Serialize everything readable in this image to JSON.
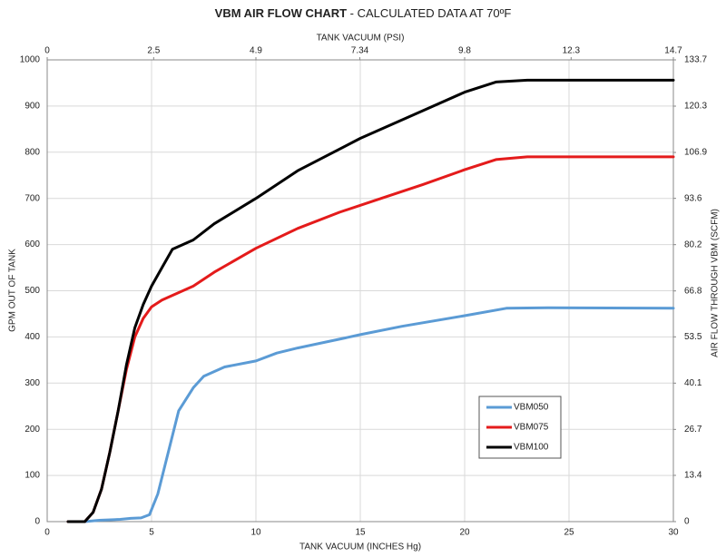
{
  "chart_data": {
    "type": "line",
    "title": "VBM AIR FLOW CHART",
    "subtitle": "- CALCULATED DATA AT 70ºF",
    "x_label": "TANK VACUUM (INCHES Hg)",
    "x2_label": "TANK VACUUM (PSI)",
    "y_label": "GPM OUT OF TANK",
    "y2_label": "AIR FLOW THROUGH VBM (SCFM)",
    "xlim": [
      0,
      30
    ],
    "xticks": [
      0,
      5,
      10,
      15,
      20,
      25,
      30
    ],
    "x2lim": [
      0,
      14.7
    ],
    "x2ticks": [
      0,
      2.5,
      4.9,
      7.34,
      9.8,
      12.3,
      14.7
    ],
    "ylim": [
      0,
      1000
    ],
    "yticks": [
      0,
      100,
      200,
      300,
      400,
      500,
      600,
      700,
      800,
      900,
      1000
    ],
    "y2lim": [
      0,
      133.7
    ],
    "y2ticks": [
      0,
      13.4,
      26.7,
      40.1,
      53.5,
      66.8,
      80.2,
      93.6,
      106.9,
      120.3,
      133.7
    ],
    "grid": true,
    "legend": "lower right",
    "series": [
      {
        "name": "VBM050",
        "color": "#5b9bd5",
        "x": [
          1,
          1.8,
          2.5,
          3.5,
          4,
          4.5,
          4.9,
          5.3,
          5.8,
          6.3,
          7,
          7.5,
          8.5,
          10,
          11,
          12,
          14,
          15,
          17,
          20,
          22,
          24,
          30
        ],
        "values": [
          0,
          0,
          3,
          5,
          7,
          8,
          15,
          60,
          150,
          240,
          290,
          315,
          335,
          348,
          365,
          376,
          395,
          405,
          423,
          446,
          462,
          463,
          462
        ]
      },
      {
        "name": "VBM075",
        "color": "#e41b1b",
        "x": [
          1,
          1.8,
          2.2,
          2.6,
          3,
          3.4,
          3.8,
          4.2,
          4.6,
          5,
          5.5,
          6,
          7,
          8,
          10,
          12,
          14,
          16,
          18,
          20,
          21.5,
          23,
          30
        ],
        "values": [
          0,
          0,
          20,
          70,
          150,
          240,
          330,
          400,
          440,
          465,
          480,
          490,
          510,
          540,
          592,
          635,
          670,
          700,
          730,
          762,
          784,
          790,
          790
        ]
      },
      {
        "name": "VBM100",
        "color": "#000000",
        "x": [
          1,
          1.8,
          2.2,
          2.6,
          3,
          3.4,
          3.8,
          4.2,
          4.6,
          5,
          5.5,
          6,
          7,
          8,
          10,
          12,
          15,
          18,
          20,
          21.5,
          23,
          30
        ],
        "values": [
          0,
          0,
          20,
          70,
          150,
          240,
          340,
          420,
          470,
          510,
          550,
          590,
          610,
          645,
          700,
          760,
          830,
          890,
          930,
          952,
          956,
          956
        ]
      }
    ]
  }
}
